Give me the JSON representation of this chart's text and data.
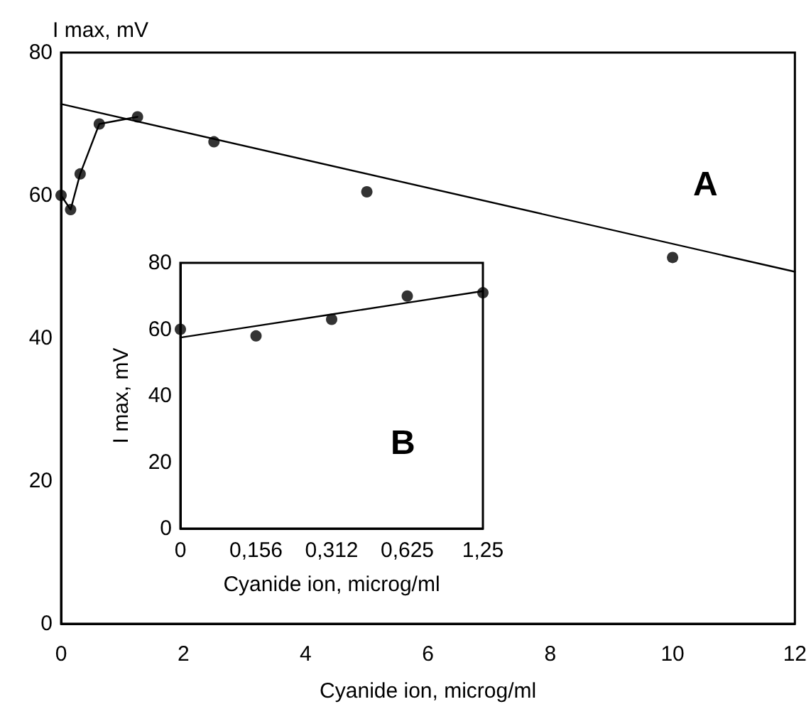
{
  "chart_data": [
    {
      "type": "scatter",
      "xlabel": "Cyanide ion, microg/ml",
      "ylabel": "I max, mV",
      "annotations": [
        "A"
      ],
      "xlim": [
        0,
        12
      ],
      "xticks": [
        0,
        2,
        4,
        6,
        8,
        10,
        12
      ],
      "ylim": [
        0,
        80
      ],
      "yticks": [
        0,
        20,
        40,
        60,
        80
      ],
      "grid": false,
      "marker": "circle",
      "series": [
        {
          "color": "#000000",
          "x": [
            0,
            0.156,
            0.312,
            0.625,
            1.25,
            2.5,
            5,
            10
          ],
          "values": [
            60,
            58,
            63,
            70,
            71,
            67.5,
            60.5,
            51.3
          ]
        },
        {
          "type": "line",
          "color": "#000000",
          "marker": "none",
          "x": [
            0,
            0.156,
            0.312,
            0.625,
            1.25
          ],
          "values": [
            60,
            58,
            63,
            70,
            71
          ]
        },
        {
          "type": "line",
          "color": "#000000",
          "marker": "none",
          "x": [
            0,
            12
          ],
          "values": [
            72.8,
            49.3
          ]
        }
      ]
    },
    {
      "type": "scatter",
      "xlabel": "Cyanide ion, microg/ml",
      "ylabel": "I max, mV",
      "annotations": [
        "B"
      ],
      "categories": [
        "0",
        "0,156",
        "0,312",
        "0,625",
        "1,25"
      ],
      "ylim": [
        0,
        80
      ],
      "yticks": [
        0,
        20,
        40,
        60,
        80
      ],
      "grid": false,
      "marker": "circle",
      "series": [
        {
          "color": "#000000",
          "values": [
            60,
            58,
            63,
            70,
            71
          ]
        },
        {
          "type": "line",
          "color": "#000000",
          "marker": "none",
          "values": [
            57.5,
            61,
            64.5,
            68,
            71.5
          ]
        }
      ]
    }
  ]
}
